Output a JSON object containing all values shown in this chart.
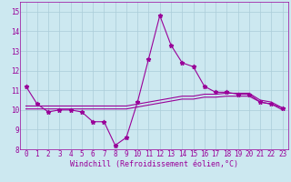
{
  "xlabel": "Windchill (Refroidissement éolien,°C)",
  "background_color": "#cce8f0",
  "grid_color": "#aaccd8",
  "line_color": "#990099",
  "hours": [
    0,
    1,
    2,
    3,
    4,
    5,
    6,
    7,
    8,
    9,
    10,
    11,
    12,
    13,
    14,
    15,
    16,
    17,
    18,
    19,
    20,
    21,
    22,
    23
  ],
  "windchill": [
    11.2,
    10.3,
    9.9,
    10.0,
    10.0,
    9.9,
    9.4,
    9.4,
    8.2,
    8.6,
    10.4,
    12.6,
    14.8,
    13.3,
    12.4,
    12.2,
    11.2,
    10.9,
    10.9,
    10.8,
    10.8,
    10.4,
    10.3,
    10.1
  ],
  "temp": [
    10.2,
    10.2,
    10.2,
    10.2,
    10.2,
    10.2,
    10.2,
    10.2,
    10.2,
    10.2,
    10.3,
    10.4,
    10.5,
    10.6,
    10.7,
    10.7,
    10.8,
    10.8,
    10.85,
    10.85,
    10.85,
    10.5,
    10.4,
    10.1
  ],
  "feels_like": [
    10.05,
    10.05,
    10.05,
    10.05,
    10.05,
    10.05,
    10.05,
    10.05,
    10.05,
    10.05,
    10.15,
    10.25,
    10.35,
    10.45,
    10.55,
    10.55,
    10.65,
    10.65,
    10.7,
    10.7,
    10.7,
    10.4,
    10.3,
    10.0
  ],
  "ylim": [
    8,
    15.5
  ],
  "xlim_left": -0.5,
  "xlim_right": 23.5,
  "yticks": [
    8,
    9,
    10,
    11,
    12,
    13,
    14,
    15
  ],
  "xticks": [
    0,
    1,
    2,
    3,
    4,
    5,
    6,
    7,
    8,
    9,
    10,
    11,
    12,
    13,
    14,
    15,
    16,
    17,
    18,
    19,
    20,
    21,
    22,
    23
  ],
  "marker": "*",
  "linewidth": 0.8,
  "markersize": 3.5,
  "xlabel_fontsize": 6.0,
  "tick_fontsize": 5.5
}
